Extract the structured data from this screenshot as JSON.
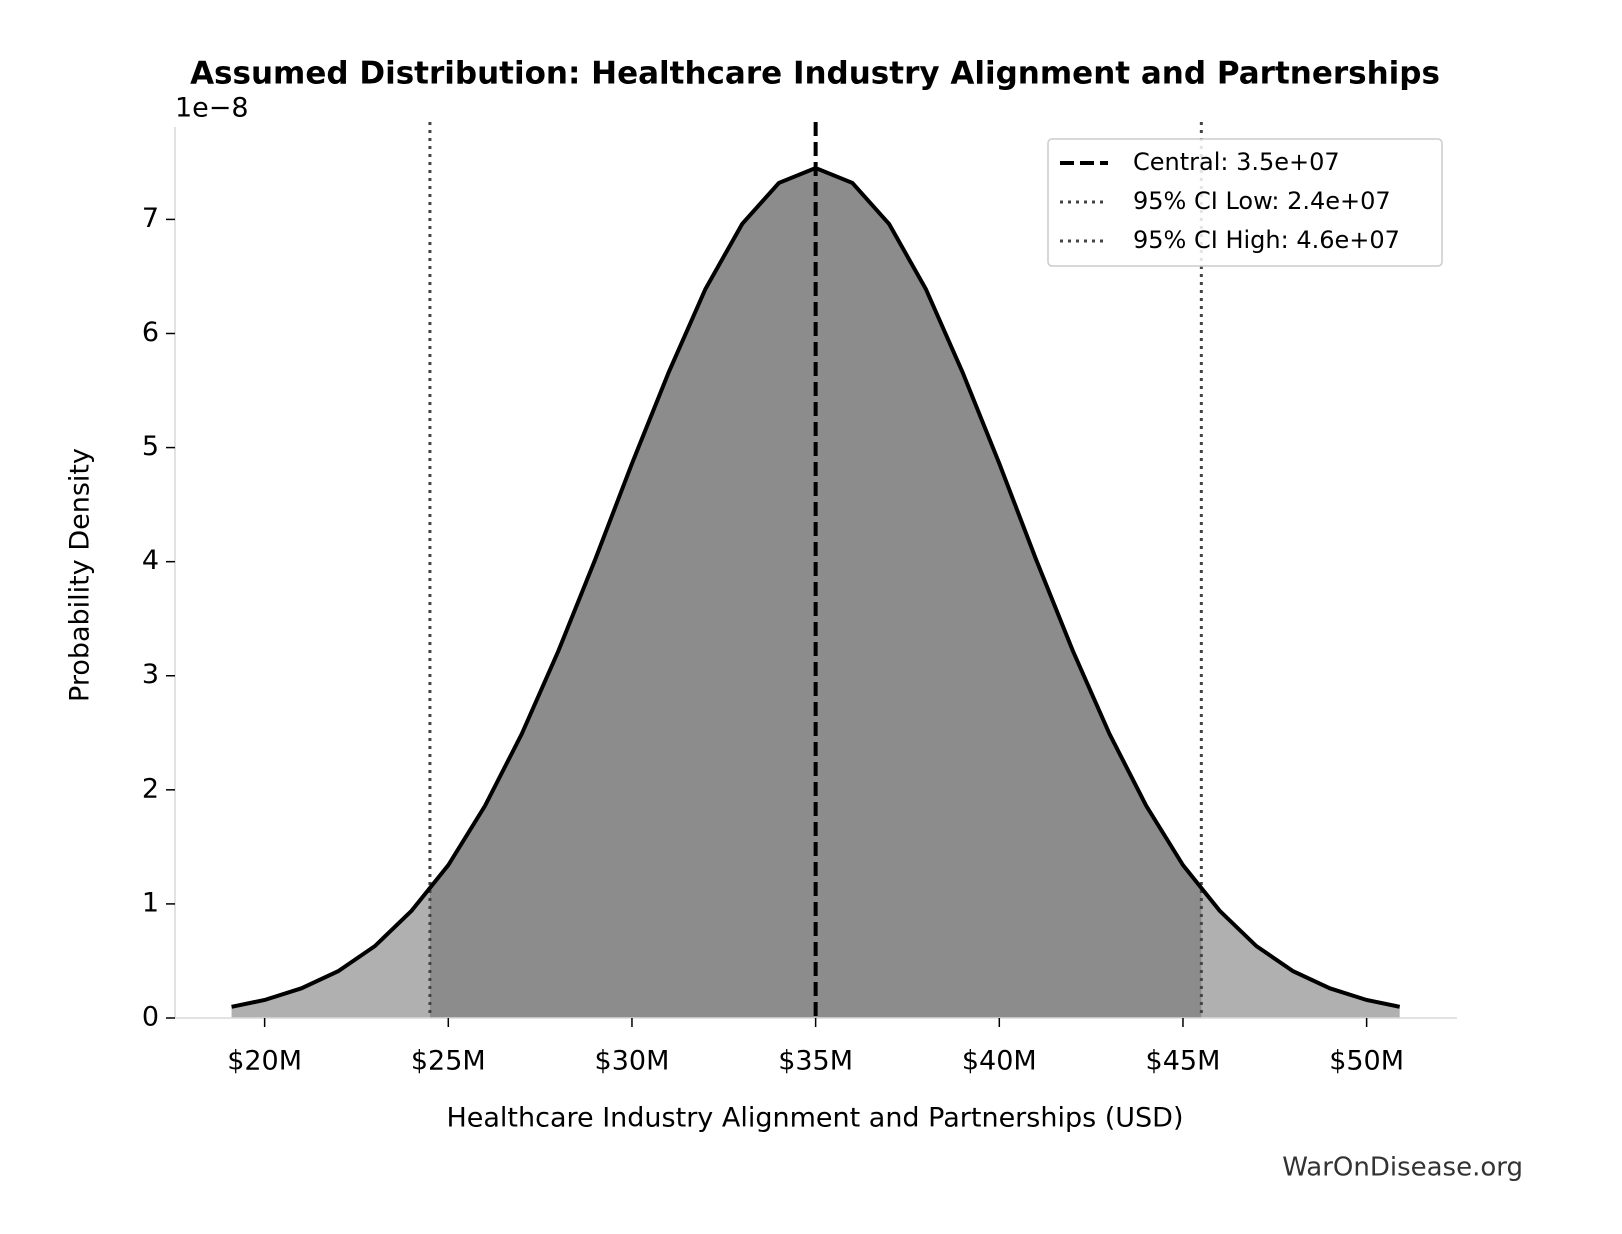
{
  "chart_data": {
    "type": "area",
    "title": "Assumed Distribution: Healthcare Industry Alignment and Partnerships",
    "x_label": "Healthcare Industry Alignment and Partnerships (USD)",
    "y_label": "Probability Density",
    "y_offset_label": "1e−8",
    "watermark": "WarOnDisease.org",
    "x": [
      19100000,
      20000000,
      21000000,
      22000000,
      23000000,
      24000000,
      25000000,
      26000000,
      27000000,
      28000000,
      29000000,
      30000000,
      31000000,
      32000000,
      33000000,
      34000000,
      35000000,
      36000000,
      37000000,
      38000000,
      39000000,
      40000000,
      41000000,
      42000000,
      43000000,
      44000000,
      45000000,
      46000000,
      47000000,
      48000000,
      49000000,
      50000000,
      50900000
    ],
    "series": [
      {
        "color": "#000000",
        "values": [
          0.098,
          0.158,
          0.26,
          0.41,
          0.63,
          0.94,
          1.34,
          1.86,
          2.49,
          3.22,
          4.02,
          4.86,
          5.66,
          6.39,
          6.96,
          7.32,
          7.45,
          7.32,
          6.96,
          6.39,
          5.66,
          4.86,
          4.02,
          3.22,
          2.49,
          1.86,
          1.34,
          0.94,
          0.63,
          0.41,
          0.26,
          0.158,
          0.098
        ]
      }
    ],
    "fill_color_inner": "#8c8c8c",
    "fill_color_tails": "#b0b0b0",
    "reference_lines": [
      {
        "name": "Central: 3.5e+07",
        "value": 35000000,
        "style": "dashed",
        "color": "#000000"
      },
      {
        "name": "95% CI Low: 2.4e+07",
        "value": 24500000,
        "style": "dotted",
        "color": "#444444"
      },
      {
        "name": "95% CI High: 4.6e+07",
        "value": 45500000,
        "style": "dotted",
        "color": "#444444"
      }
    ],
    "xlim": [
      17560000,
      52460000
    ],
    "ylim": [
      0,
      7.81
    ],
    "xticks": [
      {
        "value": 20000000,
        "label": "$20M"
      },
      {
        "value": 25000000,
        "label": "$25M"
      },
      {
        "value": 30000000,
        "label": "$30M"
      },
      {
        "value": 35000000,
        "label": "$35M"
      },
      {
        "value": 40000000,
        "label": "$40M"
      },
      {
        "value": 45000000,
        "label": "$45M"
      },
      {
        "value": 50000000,
        "label": "$50M"
      }
    ],
    "yticks": [
      0,
      1,
      2,
      3,
      4,
      5,
      6,
      7
    ],
    "grid": false,
    "legend_position": "upper-right"
  }
}
